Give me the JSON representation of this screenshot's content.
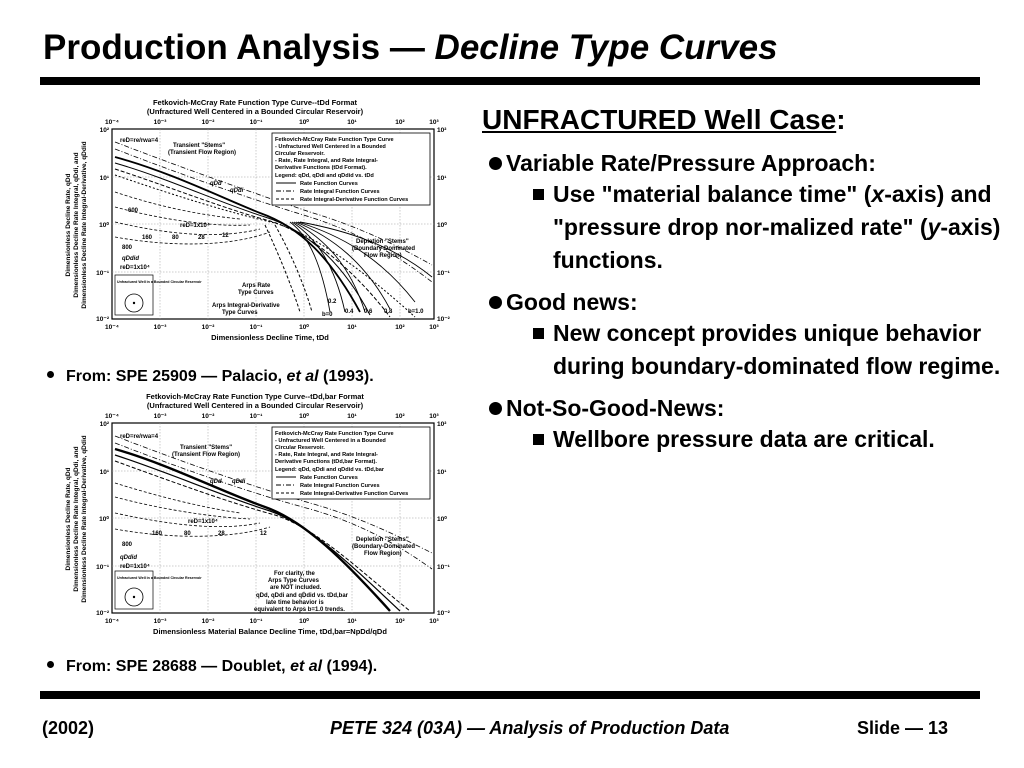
{
  "title": {
    "main": "Production Analysis — ",
    "italic": "Decline Type Curves"
  },
  "figure1": {
    "title_line1": "Fetkovich-McCray Rate Function Type Curve--tDd Format",
    "title_line2": "(Unfractured Well Centered in a Bounded Circular Reservoir)",
    "x_label": "Dimensionless Decline Time, tDd",
    "y_label_line1": "Dimensionless Decline Rate, qDd",
    "y_label_line2": "Dimensionless Decline Rate Integral, qDdi, and",
    "y_label_line3": "Dimensionless Decline Rate Integral-Derivative, qDdid",
    "top_ticks": [
      "10⁻⁴",
      "10⁻³",
      "10⁻²",
      "10⁻¹",
      "10⁰",
      "10¹",
      "10²",
      "10³"
    ],
    "bottom_ticks": [
      "10⁻⁴",
      "10⁻³",
      "10⁻²",
      "10⁻¹",
      "10⁰",
      "10¹",
      "10²",
      "10³"
    ],
    "left_ticks": [
      "10²",
      "10¹",
      "10⁰",
      "10⁻¹",
      "10⁻²"
    ],
    "right_ticks": [
      "10²",
      "10¹",
      "10⁰",
      "10⁻¹",
      "10⁻²"
    ],
    "legend": [
      "Fetkovich-McCray Rate Function Type Curve",
      "- Unfractured Well Centered in a Bounded",
      "  Circular Reservoir.",
      "- Rate, Rate Integral, and Rate Integral-",
      "  Derivative Functions (tDd Format).",
      "Legend: qDd, qDdi and qDdid vs. tDd",
      "Rate Function Curves",
      "Rate Integral Function Curves",
      "Rate Integral-Derivative Function Curves"
    ],
    "annotations": {
      "transient": "Transient \"Stems\"",
      "transient2": "(Transient Flow Region)",
      "depletion": "Depletion \"Stems\"",
      "depletion2": "(Boundary-Dominated",
      "depletion3": "Flow Region)",
      "arps": "Arps Rate",
      "arps2": "Type Curves",
      "arps_deriv": "Arps Integral-Derivative",
      "arps_deriv2": "Type Curves",
      "red": "reD=re/rwa=4",
      "well": "Unfractured Well in a Bounded Circular Reservoir",
      "qdd": "qDd",
      "qddi": "qDdi",
      "qddid": "qDdid",
      "reD_1e4": "reD=1x10⁴",
      "b_values": [
        "b=0",
        "0.2",
        "0.4",
        "0.6",
        "0.8",
        "b=1.0"
      ],
      "stem_labels": [
        "12",
        "28",
        "80",
        "160",
        "600",
        "800"
      ]
    }
  },
  "source1": {
    "prefix": "From: SPE 25909 — Palacio, ",
    "italic": "et al",
    "suffix": " (1993)."
  },
  "figure2": {
    "title_line1": "Fetkovich-McCray Rate Function Type Curve--tDd,bar Format",
    "title_line2": "(Unfractured Well Centered in a Bounded Circular Reservoir)",
    "x_label": "Dimensionless Material Balance Decline Time, tDd,bar=NpDd/qDd",
    "y_label_line1": "Dimensionless Decline Rate, qDd",
    "y_label_line2": "Dimensionless Decline Rate Integral, qDdi, and",
    "y_label_line3": "Dimensionless Decline Rate Integral-Derivative, qDdid",
    "top_ticks": [
      "10⁻⁴",
      "10⁻³",
      "10⁻²",
      "10⁻¹",
      "10⁰",
      "10¹",
      "10²",
      "10³"
    ],
    "bottom_ticks": [
      "10⁻⁴",
      "10⁻³",
      "10⁻²",
      "10⁻¹",
      "10⁰",
      "10¹",
      "10²",
      "10³"
    ],
    "left_ticks": [
      "10²",
      "10¹",
      "10⁰",
      "10⁻¹",
      "10⁻²"
    ],
    "right_ticks": [
      "10²",
      "10¹",
      "10⁰",
      "10⁻¹",
      "10⁻²"
    ],
    "legend": [
      "Fetkovich-McCray Rate Function Type Curve",
      "- Unfractured Well Centered in a Bounded",
      "  Circular Reservoir.",
      "- Rate, Rate Integral, and Rate Integral-",
      "  Derivative Functions (tDd,bar Format).",
      "Legend: qDd, qDdi and qDdid vs. tDd,bar",
      "Rate Function Curves",
      "Rate Integral Function Curves",
      "Rate Integral-Derivative Function Curves"
    ],
    "annotations": {
      "transient": "Transient \"Stems\"",
      "transient2": "(Transient Flow Region)",
      "depletion": "Depletion \"Stems\"",
      "depletion2": "(Boundary-Dominated",
      "depletion3": "Flow Region)",
      "clarity1": "For clarity, the",
      "clarity2": "Arps Type Curves",
      "clarity3": "are NOT included.",
      "late1": "qDd, qDdi and qDdid vs. tDd,bar",
      "late2": "late time behavior is",
      "late3": "equivalent to Arps b=1.0 trends.",
      "red": "reD=re/rwa=4",
      "well": "Unfractured Well in a Bounded Circular Reservoir",
      "qdd": "qDd",
      "qddi": "qDdi",
      "qddid": "qDdid",
      "reD_1e4": "reD=1x10⁴",
      "stem_labels": [
        "12",
        "28",
        "80",
        "160",
        "800"
      ]
    }
  },
  "source2": {
    "prefix": "From: SPE 28688 — Doublet, ",
    "italic": "et al",
    "suffix": " (1994)."
  },
  "right": {
    "case_underlined": "UNFRACTURED Well Case",
    "case_colon": ":",
    "bullets": [
      {
        "label": "Variable Rate/Pressure Approach:",
        "sub": [
          {
            "parts": [
              "Use \"material balance time\" (",
              "x",
              "-axis) and \"pressure drop nor-malized rate\" (",
              "y",
              "-axis) functions."
            ]
          }
        ]
      },
      {
        "label": "Good news:",
        "sub": [
          {
            "text": "New concept provides unique behavior during boundary-dominated flow regime."
          }
        ]
      },
      {
        "label": "Not-So-Good-News:",
        "sub": [
          {
            "text": "Wellbore pressure data are critical."
          }
        ]
      }
    ]
  },
  "footer": {
    "left": "(2002)",
    "center": "PETE 324 (03A) — Analysis of Production Data",
    "right": "Slide — 13"
  }
}
